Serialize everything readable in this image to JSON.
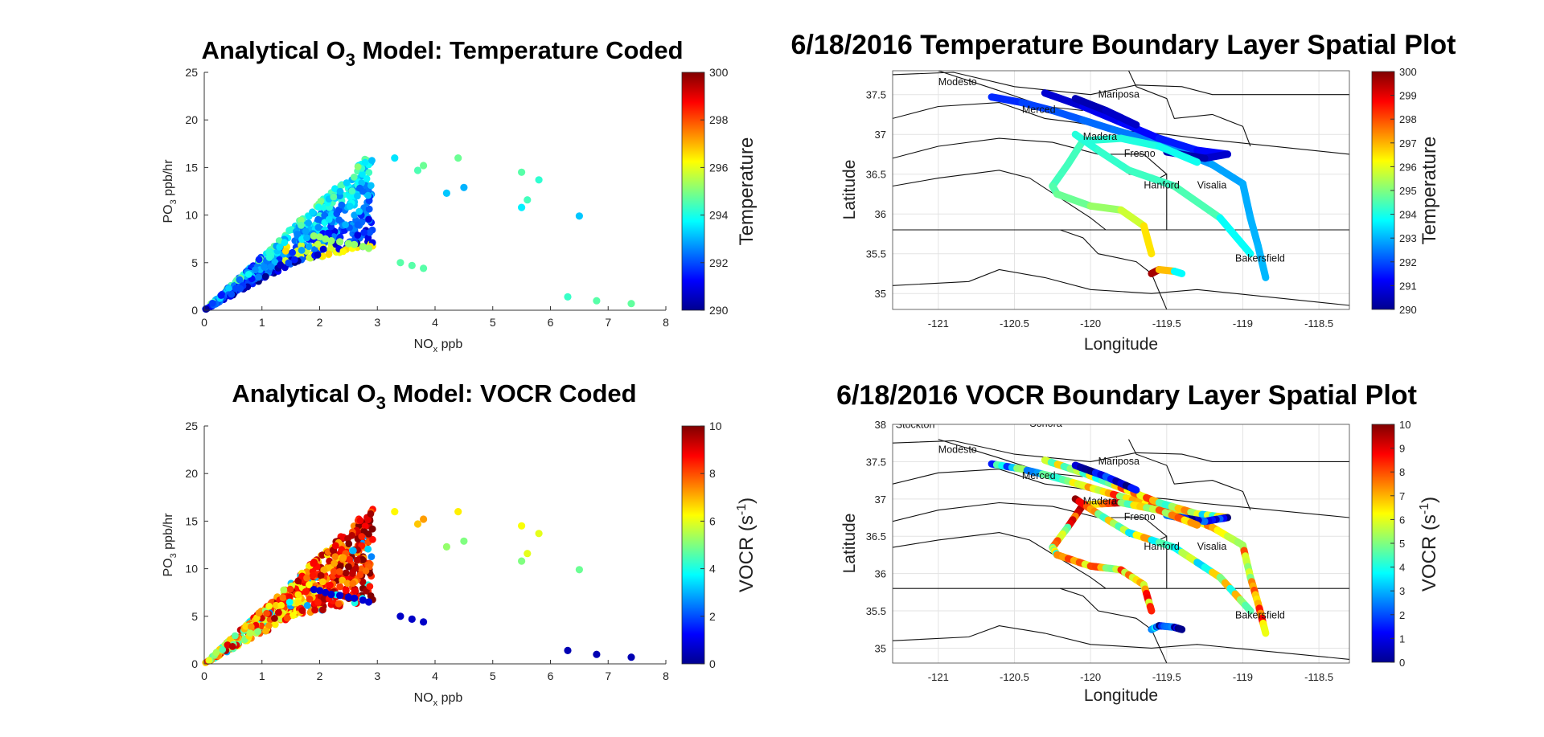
{
  "panels": {
    "scatter_temp": {
      "title_pre": "Analytical O",
      "title_sub": "3",
      "title_post": " Model: Temperature Coded",
      "xlabel_pre": "NO",
      "xlabel_sub": "x",
      "xlabel_post": " ppb",
      "ylabel_pre": "PO",
      "ylabel_sub": "3",
      "ylabel_post": " ppb/hr",
      "colorbar_label": "Temperature",
      "colorbar_ticks": [
        "290",
        "292",
        "294",
        "296",
        "298",
        "300"
      ]
    },
    "map_temp": {
      "title": "6/18/2016 Temperature Boundary Layer Spatial Plot",
      "xlabel": "Longitude",
      "ylabel": "Latitude",
      "colorbar_label": "Temperature",
      "colorbar_ticks": [
        "290",
        "291",
        "292",
        "293",
        "294",
        "295",
        "296",
        "297",
        "298",
        "299",
        "300"
      ]
    },
    "scatter_vocr": {
      "title_pre": "Analytical O",
      "title_sub": "3",
      "title_post": " Model: VOCR Coded",
      "xlabel_pre": "NO",
      "xlabel_sub": "x",
      "xlabel_post": " ppb",
      "ylabel_pre": "PO",
      "ylabel_sub": "3",
      "ylabel_post": " ppb/hr",
      "colorbar_label_pre": "VOCR (s",
      "colorbar_label_sup": "-1",
      "colorbar_label_post": ")",
      "colorbar_ticks": [
        "0",
        "2",
        "4",
        "6",
        "8",
        "10"
      ]
    },
    "map_vocr": {
      "title": "6/18/2016 VOCR Boundary Layer Spatial Plot",
      "xlabel": "Longitude",
      "ylabel": "Latitude",
      "colorbar_label_pre": "VOCR (s",
      "colorbar_label_sup": "-1",
      "colorbar_label_post": ")",
      "colorbar_ticks": [
        "0",
        "1",
        "2",
        "3",
        "4",
        "5",
        "6",
        "7",
        "8",
        "9",
        "10"
      ]
    }
  },
  "chart_data": [
    {
      "type": "scatter",
      "title": "Analytical O3 Model: Temperature Coded",
      "xlabel": "NOx ppb",
      "ylabel": "PO3 ppb/hr",
      "xlim": [
        0,
        8
      ],
      "ylim": [
        0,
        25
      ],
      "xticks": [
        "0",
        "1",
        "2",
        "3",
        "4",
        "5",
        "6",
        "7",
        "8"
      ],
      "yticks": [
        "0",
        "5",
        "10",
        "15",
        "20",
        "25"
      ],
      "colormap": "jet",
      "clim": [
        290,
        300
      ],
      "outliers": [
        {
          "x": 3.3,
          "y": 16.0,
          "c": 293.5
        },
        {
          "x": 3.7,
          "y": 14.7,
          "c": 294.5
        },
        {
          "x": 3.8,
          "y": 15.2,
          "c": 294.8
        },
        {
          "x": 4.2,
          "y": 12.3,
          "c": 293.2
        },
        {
          "x": 4.4,
          "y": 16.0,
          "c": 294.8
        },
        {
          "x": 4.5,
          "y": 12.9,
          "c": 293.0
        },
        {
          "x": 5.5,
          "y": 14.5,
          "c": 294.6
        },
        {
          "x": 5.5,
          "y": 10.8,
          "c": 293.6
        },
        {
          "x": 5.6,
          "y": 11.6,
          "c": 294.4
        },
        {
          "x": 5.8,
          "y": 13.7,
          "c": 294.2
        },
        {
          "x": 6.5,
          "y": 9.9,
          "c": 293.2
        },
        {
          "x": 6.3,
          "y": 1.4,
          "c": 294.3
        },
        {
          "x": 6.8,
          "y": 1.0,
          "c": 294.6
        },
        {
          "x": 7.4,
          "y": 0.7,
          "c": 294.7
        },
        {
          "x": 3.4,
          "y": 5.0,
          "c": 294.6
        },
        {
          "x": 3.6,
          "y": 4.7,
          "c": 294.6
        },
        {
          "x": 3.8,
          "y": 4.4,
          "c": 294.6
        }
      ]
    },
    {
      "type": "line",
      "title": "6/18/2016 Temperature Boundary Layer Spatial Plot",
      "xlabel": "Longitude",
      "ylabel": "Latitude",
      "xlim": [
        -121.3,
        -118.3
      ],
      "ylim": [
        34.8,
        37.8
      ],
      "xticks": [
        "-121",
        "-120.5",
        "-120",
        "-119.5",
        "-119",
        "-118.5"
      ],
      "yticks": [
        "35",
        "35.5",
        "36",
        "36.5",
        "37",
        "37.5"
      ],
      "colormap": "jet",
      "clim": [
        290,
        300
      ],
      "cities": [
        "Modesto",
        "Merced",
        "Mariposa",
        "Madera",
        "Fresno",
        "Hanford",
        "Visalia",
        "Bakersfield"
      ]
    },
    {
      "type": "scatter",
      "title": "Analytical O3 Model: VOCR Coded",
      "xlabel": "NOx ppb",
      "ylabel": "PO3 ppb/hr",
      "xlim": [
        0,
        8
      ],
      "ylim": [
        0,
        25
      ],
      "xticks": [
        "0",
        "1",
        "2",
        "3",
        "4",
        "5",
        "6",
        "7",
        "8"
      ],
      "yticks": [
        "0",
        "5",
        "10",
        "15",
        "20",
        "25"
      ],
      "colormap": "jet",
      "clim": [
        0,
        10
      ],
      "outliers": [
        {
          "x": 3.3,
          "y": 16.0,
          "c": 6.3
        },
        {
          "x": 3.7,
          "y": 14.7,
          "c": 6.8
        },
        {
          "x": 3.8,
          "y": 15.2,
          "c": 7.2
        },
        {
          "x": 4.2,
          "y": 12.3,
          "c": 5.2
        },
        {
          "x": 4.4,
          "y": 16.0,
          "c": 6.4
        },
        {
          "x": 4.5,
          "y": 12.9,
          "c": 5.0
        },
        {
          "x": 5.5,
          "y": 14.5,
          "c": 6.2
        },
        {
          "x": 5.5,
          "y": 10.8,
          "c": 5.0
        },
        {
          "x": 5.6,
          "y": 11.6,
          "c": 6.0
        },
        {
          "x": 5.8,
          "y": 13.7,
          "c": 6.0
        },
        {
          "x": 6.5,
          "y": 9.9,
          "c": 4.8
        },
        {
          "x": 6.3,
          "y": 1.4,
          "c": 0.5
        },
        {
          "x": 6.8,
          "y": 1.0,
          "c": 0.5
        },
        {
          "x": 7.4,
          "y": 0.7,
          "c": 0.5
        },
        {
          "x": 3.4,
          "y": 5.0,
          "c": 0.7
        },
        {
          "x": 3.6,
          "y": 4.7,
          "c": 0.7
        },
        {
          "x": 3.8,
          "y": 4.4,
          "c": 0.7
        }
      ]
    },
    {
      "type": "line",
      "title": "6/18/2016 VOCR Boundary Layer Spatial Plot",
      "xlabel": "Longitude",
      "ylabel": "Latitude",
      "xlim": [
        -121.3,
        -118.3
      ],
      "ylim": [
        34.8,
        38.0
      ],
      "xticks": [
        "-121",
        "-120.5",
        "-120",
        "-119.5",
        "-119",
        "-118.5"
      ],
      "yticks": [
        "35",
        "35.5",
        "36",
        "36.5",
        "37",
        "37.5",
        "38"
      ],
      "colormap": "jet",
      "clim": [
        0,
        10
      ],
      "cities": [
        "Stockton",
        "Sonora",
        "Modesto",
        "Merced",
        "Mariposa",
        "Madera",
        "Fresno",
        "Hanford",
        "Visalia",
        "Bakersfield"
      ]
    }
  ]
}
